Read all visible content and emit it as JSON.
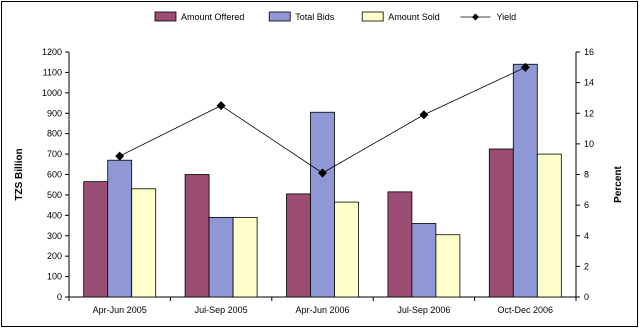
{
  "chart_data": {
    "type": "bar",
    "categories": [
      "Apr-Jun 2005",
      "Jul-Sep 2005",
      "Apr-Jun 2006",
      "Jul-Sep 2006",
      "Oct-Dec 2006"
    ],
    "series": [
      {
        "name": "Amount Offered",
        "values": [
          565,
          600,
          505,
          515,
          725
        ],
        "color": "#9b4d73"
      },
      {
        "name": "Total Bids",
        "values": [
          670,
          390,
          905,
          360,
          1140
        ],
        "color": "#8f97d5"
      },
      {
        "name": "Amount Sold",
        "values": [
          530,
          390,
          465,
          305,
          700
        ],
        "color": "#ffffcc"
      }
    ],
    "line_series": {
      "name": "Yield",
      "values": [
        9.2,
        12.5,
        8.1,
        11.9,
        15.0
      ],
      "color": "#000000"
    },
    "ylabel": "TZS Billion",
    "ylim": [
      0,
      1200
    ],
    "y_ticks": [
      0,
      100,
      200,
      300,
      400,
      500,
      600,
      700,
      800,
      900,
      1000,
      1100,
      1200
    ],
    "y2label": "Percent",
    "y2lim": [
      0,
      16
    ],
    "y2_ticks": [
      0,
      2,
      4,
      6,
      8,
      10,
      12,
      14,
      16
    ],
    "legend_position": "top",
    "grid": false
  }
}
